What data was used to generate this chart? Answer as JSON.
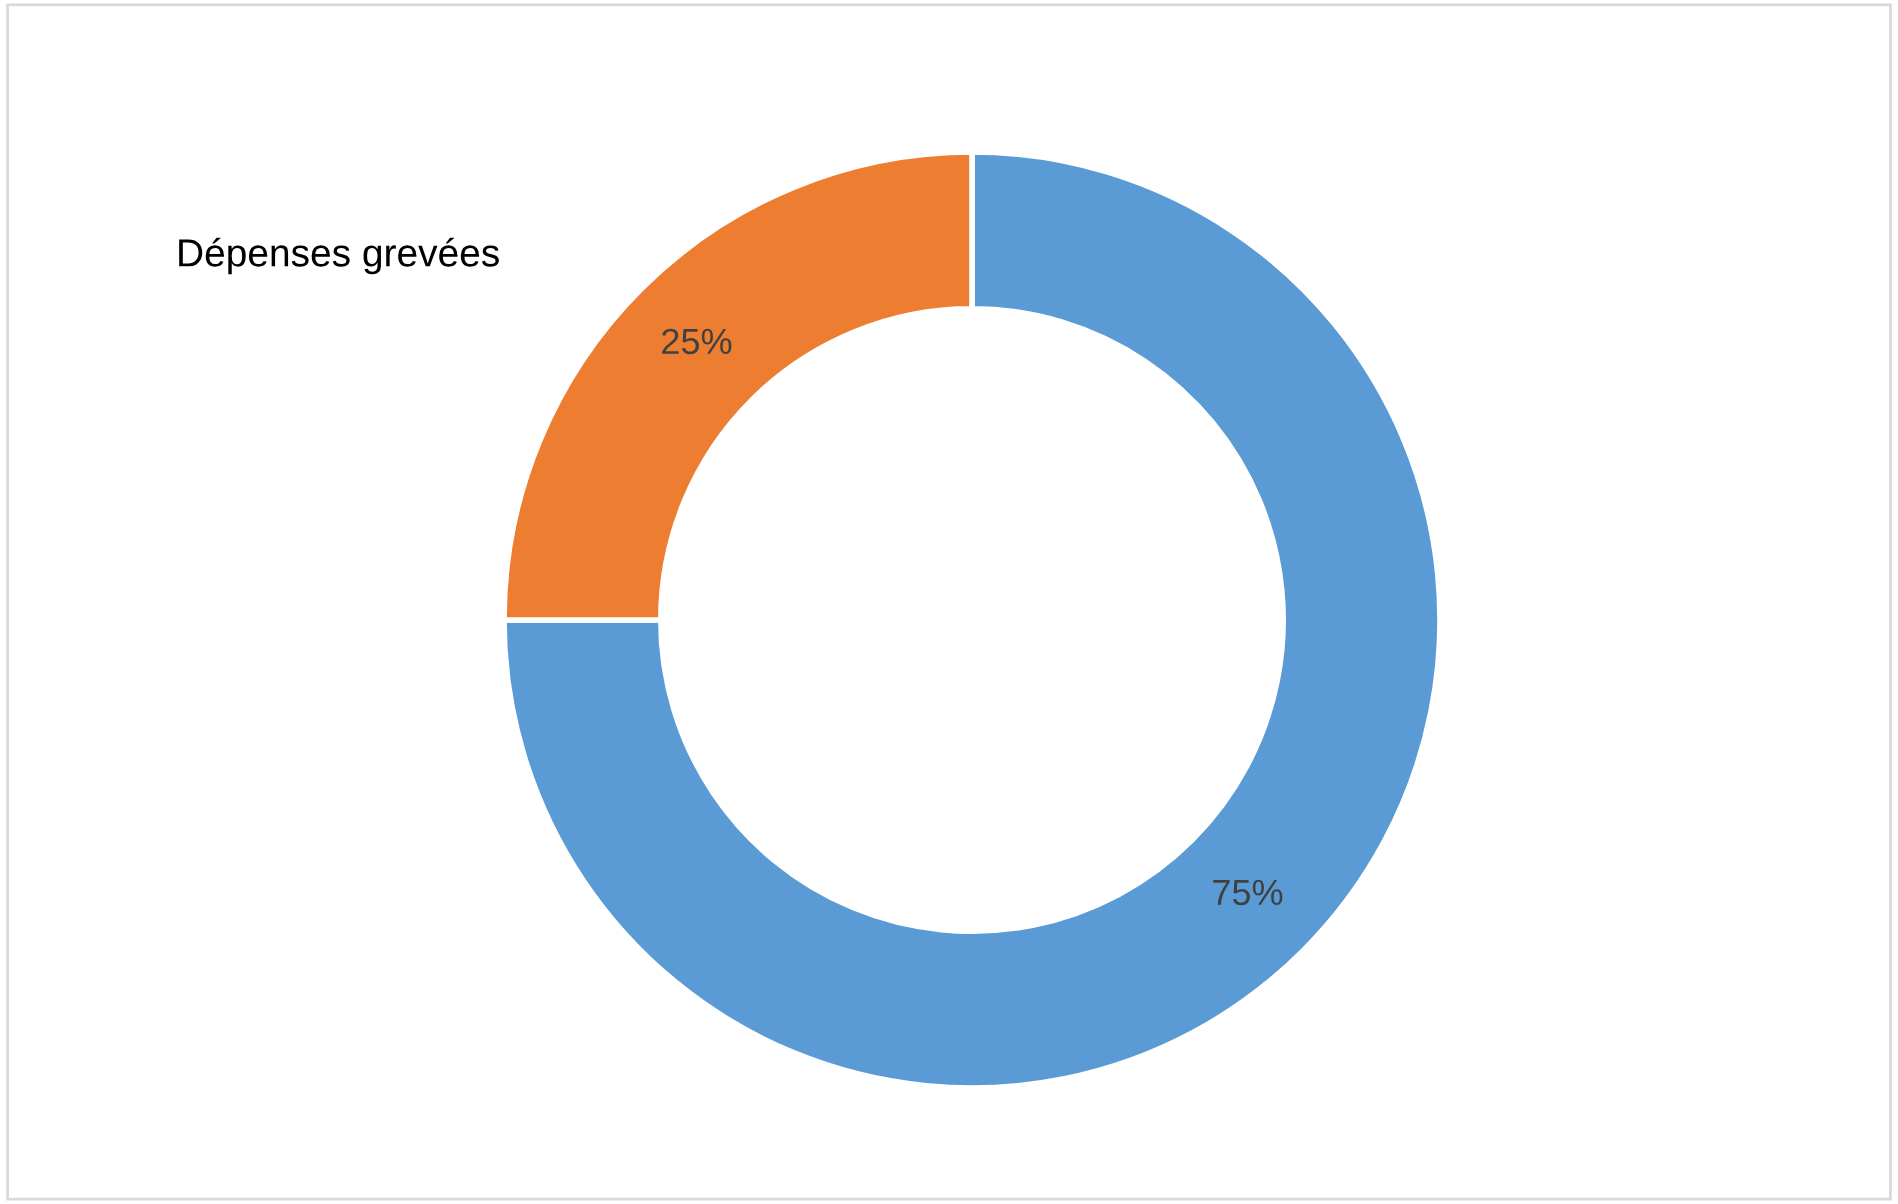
{
  "chart_data": {
    "type": "donut",
    "title": "Dépenses grevées",
    "categories": [
      null,
      null
    ],
    "values": [
      75,
      25
    ],
    "colors": [
      "#5b9bd5",
      "#ed7d31"
    ],
    "value_labels": [
      "75%",
      "25%"
    ],
    "legend": false
  }
}
